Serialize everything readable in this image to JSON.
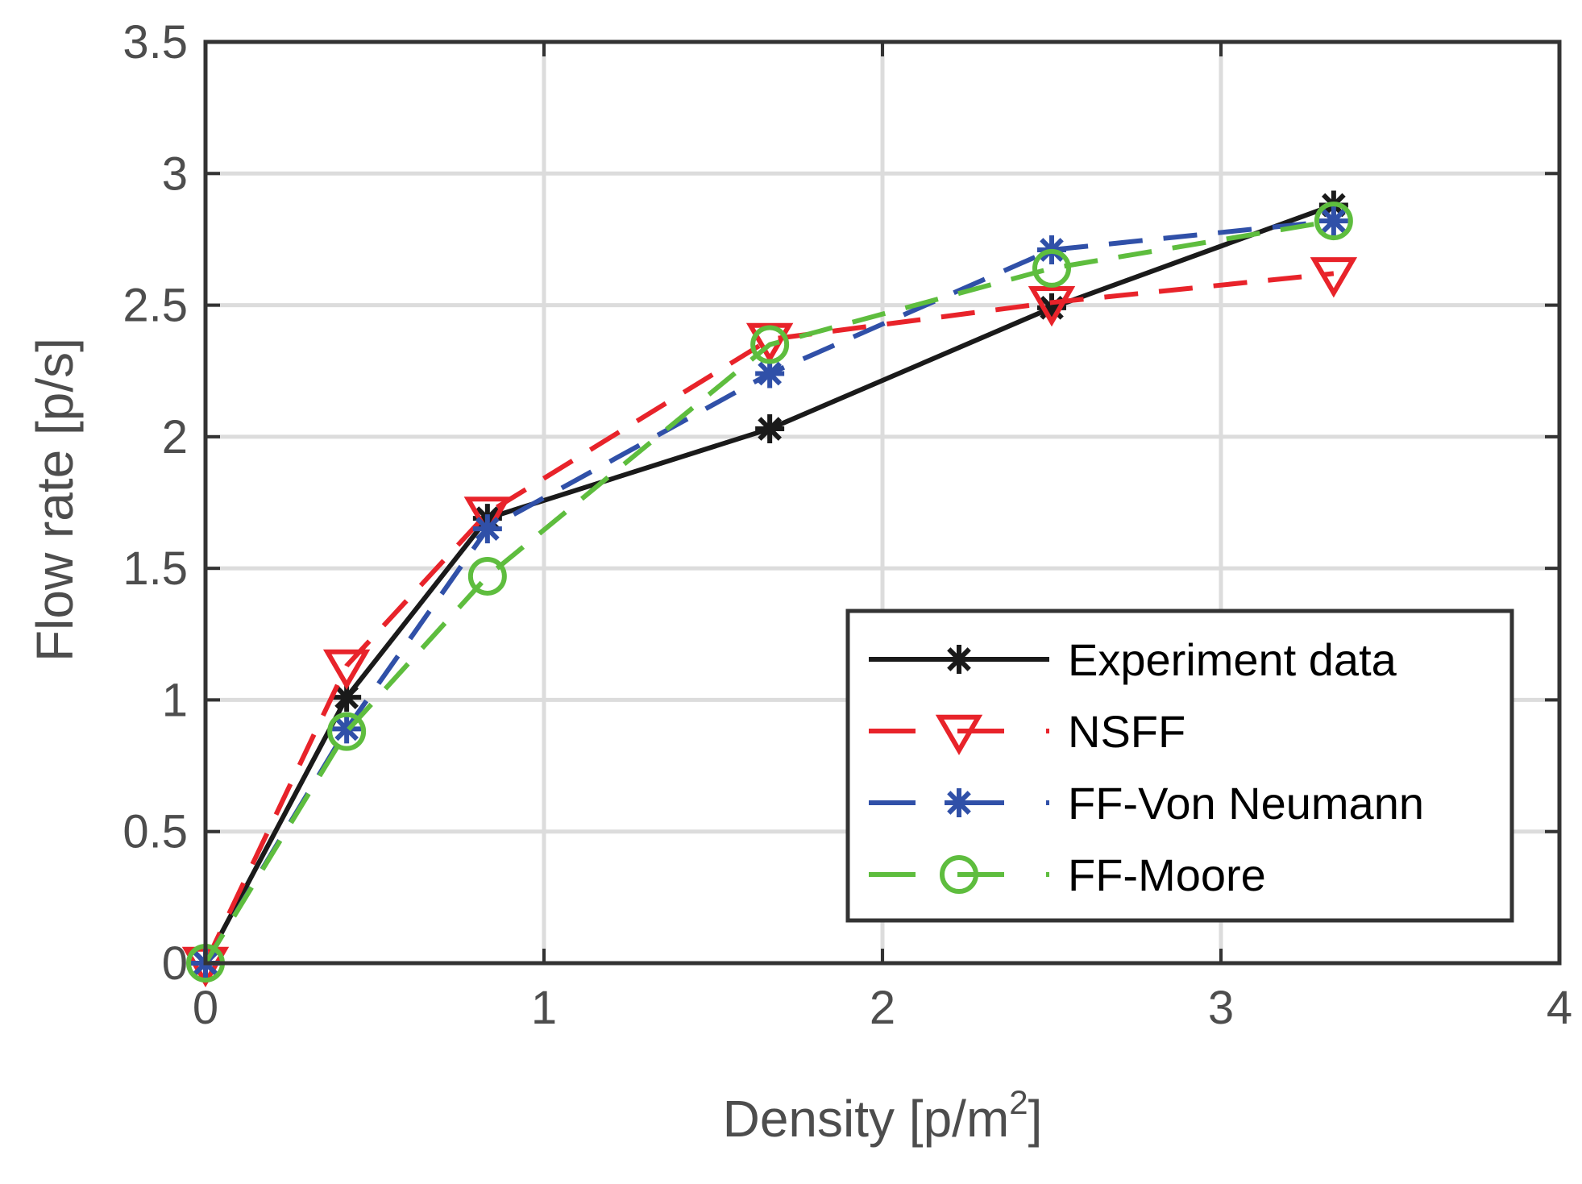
{
  "chart_data": {
    "type": "line",
    "title": "",
    "xlabel": "Density [p/m",
    "xlabel_superscript": "2",
    "xlabel_suffix": "]",
    "ylabel": "Flow rate [p/s]",
    "xlim": [
      0,
      4
    ],
    "ylim": [
      0,
      3.5
    ],
    "x_ticks": [
      0,
      1,
      2,
      3,
      4
    ],
    "y_ticks": [
      0,
      0.5,
      1,
      1.5,
      2,
      2.5,
      3,
      3.5
    ],
    "x_tick_labels": [
      "0",
      "1",
      "2",
      "3",
      "4"
    ],
    "y_tick_labels": [
      "0",
      "0.5",
      "1",
      "1.5",
      "2",
      "2.5",
      "3",
      "3.5"
    ],
    "grid": true,
    "legend_position": "bottom-right",
    "series": [
      {
        "name": "Experiment data",
        "color": "#1a1a1a",
        "line": "solid",
        "marker": "asterisk",
        "x": [
          0,
          0.417,
          0.833,
          1.667,
          2.5,
          3.333
        ],
        "y": [
          0,
          1.01,
          1.69,
          2.03,
          2.49,
          2.88
        ]
      },
      {
        "name": "NSFF",
        "color": "#e8232a",
        "line": "dashed",
        "marker": "triangle-down",
        "x": [
          0,
          0.417,
          0.833,
          1.667,
          2.5,
          3.333
        ],
        "y": [
          0,
          1.13,
          1.71,
          2.37,
          2.51,
          2.62
        ]
      },
      {
        "name": "FF-Von Neumann",
        "color": "#3050a8",
        "line": "dashed",
        "marker": "asterisk",
        "x": [
          0,
          0.417,
          0.833,
          1.667,
          2.5,
          3.333
        ],
        "y": [
          0,
          0.89,
          1.65,
          2.24,
          2.71,
          2.82
        ]
      },
      {
        "name": "FF-Moore",
        "color": "#5ebd3e",
        "line": "dashed",
        "marker": "circle",
        "x": [
          0,
          0.417,
          0.833,
          1.667,
          2.5,
          3.333
        ],
        "y": [
          0,
          0.88,
          1.47,
          2.35,
          2.64,
          2.82
        ]
      }
    ]
  }
}
